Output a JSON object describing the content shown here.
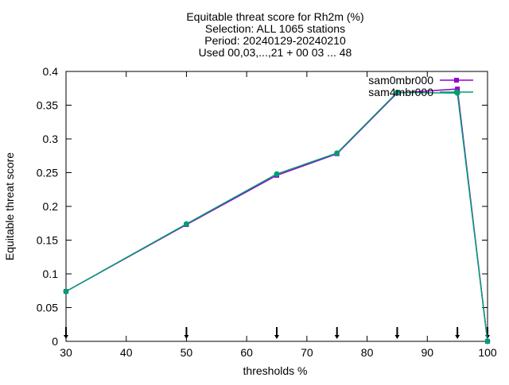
{
  "chart_data": {
    "type": "line",
    "title_lines": [
      "Equitable threat score  for Rh2m (%)",
      "Selection: ALL   1065 stations",
      "Period: 20240129-20240210",
      "Used 00,03,...,21 + 00 03 ... 48"
    ],
    "xlabel": "thresholds %",
    "ylabel": "Equitable threat score",
    "xlim": [
      30,
      100
    ],
    "ylim": [
      0,
      0.4
    ],
    "xticks": [
      30,
      40,
      50,
      60,
      70,
      80,
      90,
      100
    ],
    "xtick_labels": [
      "30",
      "40",
      "50",
      "60",
      "70",
      "80",
      "90",
      "100"
    ],
    "yticks": [
      0,
      0.05,
      0.1,
      0.15,
      0.2,
      0.25,
      0.3,
      0.35,
      0.4
    ],
    "ytick_labels": [
      "0",
      "0.05",
      "0.1",
      "0.15",
      "0.2",
      "0.25",
      "0.3",
      "0.35",
      "0.4"
    ],
    "grid": false,
    "legend_position": "top-right",
    "threshold_markers_x": [
      30,
      50,
      65,
      75,
      85,
      95,
      100
    ],
    "series": [
      {
        "name": "sam0mbr000",
        "color": "#9400d3",
        "marker": "square",
        "x": [
          30,
          50,
          65,
          75,
          85,
          95,
          100
        ],
        "y": [
          0.074,
          0.173,
          0.246,
          0.278,
          0.368,
          0.374,
          0.0
        ]
      },
      {
        "name": "sam4mbr000",
        "color": "#009e73",
        "marker": "circle",
        "x": [
          30,
          50,
          65,
          75,
          85,
          95,
          100
        ],
        "y": [
          0.074,
          0.174,
          0.248,
          0.279,
          0.369,
          0.368,
          0.0
        ]
      }
    ]
  }
}
